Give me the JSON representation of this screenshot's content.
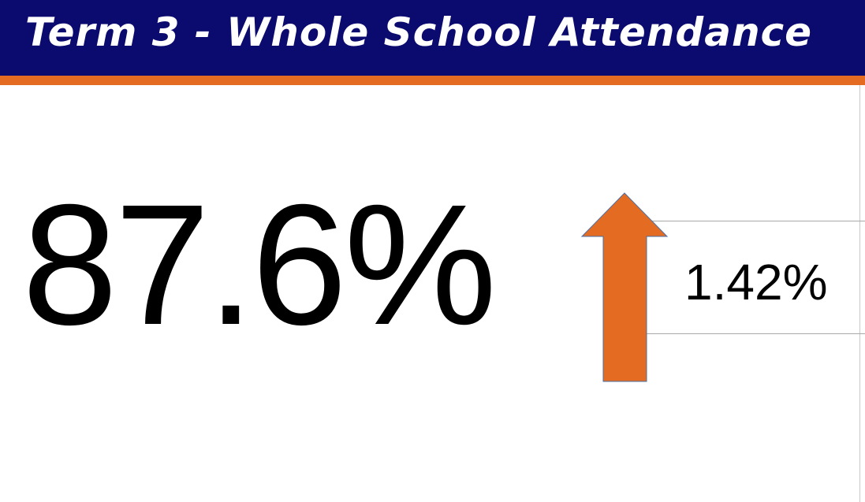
{
  "header": {
    "title": "Term 3 - Whole School Attendance"
  },
  "metric": {
    "value": "87.6%",
    "change": "1.42%"
  }
}
